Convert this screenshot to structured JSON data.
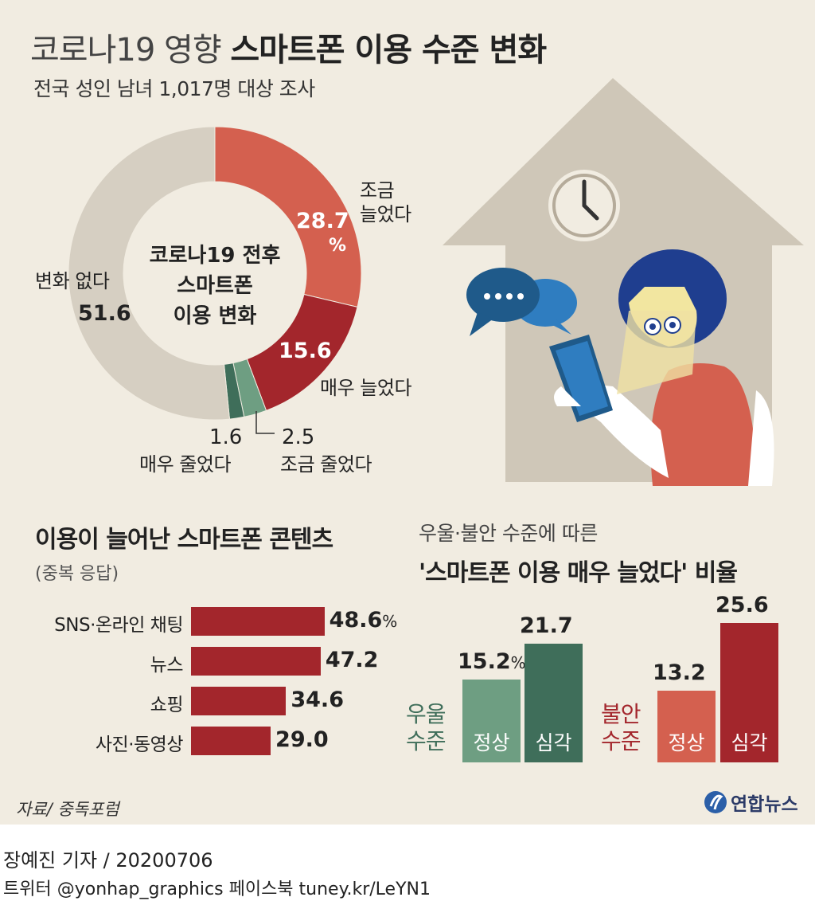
{
  "title": {
    "light": "코로나19 영향",
    "strong": "스마트폰 이용 수준 변화"
  },
  "subtitle": "전국 성인 남녀 1,017명 대상 조사",
  "donut": {
    "center_label_lines": [
      "코로나19 전후",
      "스마트폰",
      "이용 변화"
    ],
    "unit": "%",
    "segments": [
      {
        "label": "조금 늘었다",
        "label_lines": [
          "조금",
          "늘었다"
        ],
        "value": 28.7,
        "value_text": "28.7",
        "color": "#d4604f"
      },
      {
        "label": "매우 늘었다",
        "label_lines": [
          "매우 늘었다"
        ],
        "value": 15.6,
        "value_text": "15.6",
        "color": "#a3262c"
      },
      {
        "label": "조금 줄었다",
        "label_lines": [
          "조금 줄었다"
        ],
        "value": 2.5,
        "value_text": "2.5",
        "color": "#6e9e82"
      },
      {
        "label": "매우 줄었다",
        "label_lines": [
          "매우 줄었다"
        ],
        "value": 1.6,
        "value_text": "1.6",
        "color": "#3f6e5a"
      },
      {
        "label": "변화 없다",
        "label_lines": [
          "변화 없다"
        ],
        "value": 51.6,
        "value_text": "51.6",
        "color": "#d6cfc2"
      }
    ]
  },
  "contents": {
    "title": "이용이 늘어난 스마트폰 콘텐츠",
    "note": "(중복 응답)",
    "unit": "%"
  },
  "ratio": {
    "title_line1": "우울·불안 수준에 따른",
    "title_line2": "'스마트폰 이용 매우 늘었다' 비율",
    "unit": "%"
  },
  "chart_data": [
    {
      "type": "pie",
      "title": "코로나19 전후 스마트폰 이용 변화",
      "unit": "%",
      "categories": [
        "조금 늘었다",
        "매우 늘었다",
        "조금 줄었다",
        "매우 줄었다",
        "변화 없다"
      ],
      "values": [
        28.7,
        15.6,
        2.5,
        1.6,
        51.6
      ]
    },
    {
      "type": "bar",
      "orientation": "horizontal",
      "title": "이용이 늘어난 스마트폰 콘텐츠",
      "unit": "%",
      "categories": [
        "SNS·온라인 채팅",
        "뉴스",
        "쇼핑",
        "사진·동영상"
      ],
      "values": [
        48.6,
        47.2,
        34.6,
        29.0
      ],
      "value_texts": [
        "48.6",
        "47.2",
        "34.6",
        "29.0"
      ],
      "color": "#a3262c"
    },
    {
      "type": "bar",
      "title": "'스마트폰 이용 매우 늘었다' 비율",
      "unit": "%",
      "groups": [
        {
          "name_lines": [
            "우울",
            "수준"
          ],
          "color_text": "#3f6e5a",
          "bars": [
            {
              "label": "정상",
              "value": 15.2,
              "value_text": "15.2",
              "color": "#6e9e82"
            },
            {
              "label": "심각",
              "value": 21.7,
              "value_text": "21.7",
              "color": "#3f6e5a"
            }
          ]
        },
        {
          "name_lines": [
            "불안",
            "수준"
          ],
          "color_text": "#a3262c",
          "bars": [
            {
              "label": "정상",
              "value": 13.2,
              "value_text": "13.2",
              "color": "#d4604f"
            },
            {
              "label": "심각",
              "value": 25.6,
              "value_text": "25.6",
              "color": "#a3262c"
            }
          ]
        }
      ]
    }
  ],
  "source": "자료/ 중독포럼",
  "logo_text": "연합뉴스",
  "footer": {
    "credit": "장예진 기자 / 20200706",
    "social": "트위터 @yonhap_graphics  페이스북 tuney.kr/LeYN1"
  },
  "colors": {
    "background": "#f1ece1",
    "house": "#cfc7b8",
    "chat_blue": "#1f5a8a",
    "face": "#f2e6a0",
    "hair": "#1f3e8f",
    "shirt": "#d4604f"
  },
  "illustration_icons": [
    "house-icon",
    "clock-icon",
    "speech-bubble-icon",
    "woman-with-phone-icon"
  ]
}
